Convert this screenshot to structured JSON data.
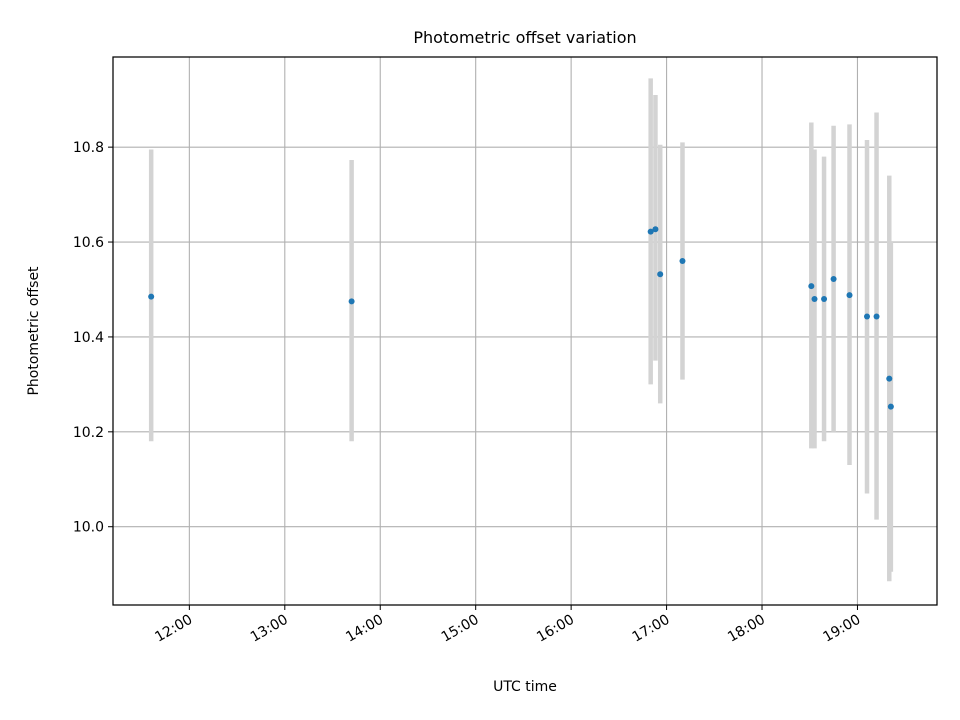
{
  "chart_data": {
    "type": "scatter",
    "title": "Photometric offset variation",
    "xlabel": "UTC time",
    "ylabel": "Photometric offset",
    "x_unit": "time of day (hours)",
    "xlim": [
      "11:12",
      "19:50"
    ],
    "ylim": [
      9.835,
      10.99
    ],
    "x_ticks": [
      "12:00",
      "13:00",
      "14:00",
      "15:00",
      "16:00",
      "17:00",
      "18:00",
      "19:00"
    ],
    "y_ticks": [
      "10.0",
      "10.2",
      "10.4",
      "10.6",
      "10.8"
    ],
    "grid": true,
    "marker_color": "#1f77b4",
    "errorbar_color": "#d3d3d3",
    "points": [
      {
        "x": "11:36",
        "y": 10.485,
        "ylow": 10.18,
        "yhigh": 10.795
      },
      {
        "x": "13:42",
        "y": 10.475,
        "ylow": 10.18,
        "yhigh": 10.773
      },
      {
        "x": "16:50",
        "y": 10.622,
        "ylow": 10.3,
        "yhigh": 10.945
      },
      {
        "x": "16:53",
        "y": 10.627,
        "ylow": 10.35,
        "yhigh": 10.91
      },
      {
        "x": "16:56",
        "y": 10.532,
        "ylow": 10.26,
        "yhigh": 10.805
      },
      {
        "x": "17:10",
        "y": 10.56,
        "ylow": 10.31,
        "yhigh": 10.81
      },
      {
        "x": "18:31",
        "y": 10.507,
        "ylow": 10.165,
        "yhigh": 10.852
      },
      {
        "x": "18:33",
        "y": 10.48,
        "ylow": 10.165,
        "yhigh": 10.795
      },
      {
        "x": "18:39",
        "y": 10.48,
        "ylow": 10.18,
        "yhigh": 10.78
      },
      {
        "x": "18:45",
        "y": 10.522,
        "ylow": 10.2,
        "yhigh": 10.845
      },
      {
        "x": "18:55",
        "y": 10.488,
        "ylow": 10.13,
        "yhigh": 10.848
      },
      {
        "x": "19:06",
        "y": 10.443,
        "ylow": 10.07,
        "yhigh": 10.815
      },
      {
        "x": "19:12",
        "y": 10.443,
        "ylow": 10.015,
        "yhigh": 10.873
      },
      {
        "x": "19:20",
        "y": 10.312,
        "ylow": 9.885,
        "yhigh": 10.74
      },
      {
        "x": "19:21",
        "y": 10.253,
        "ylow": 9.905,
        "yhigh": 10.6
      }
    ]
  }
}
